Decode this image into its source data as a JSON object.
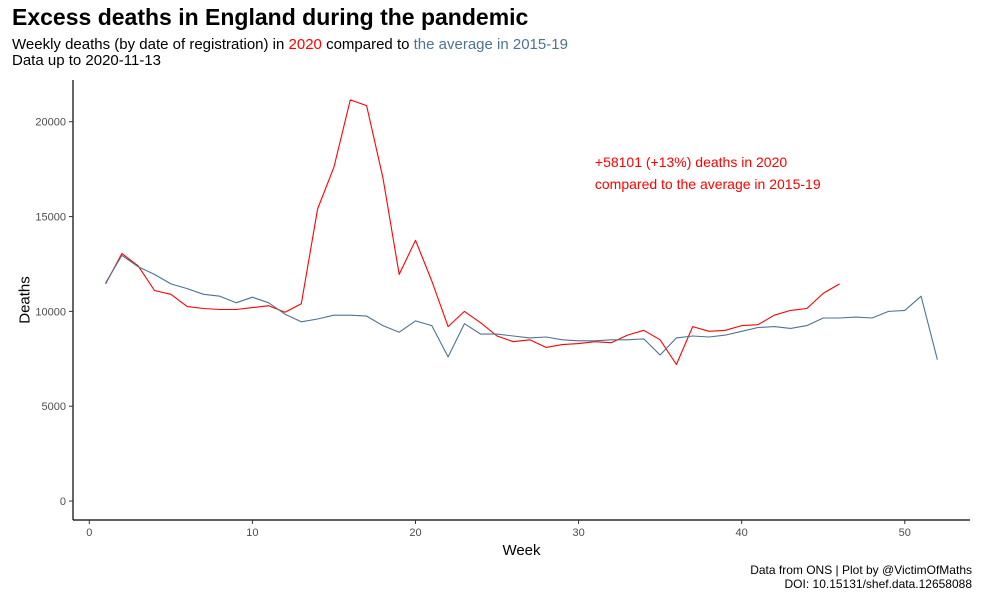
{
  "title": "Excess deaths in England during the pandemic",
  "subtitle": {
    "part1": "Weekly deaths (by date of registration) in ",
    "year": "2020",
    "part2": " compared to ",
    "average": "the average in 2015-19",
    "line2": "Data up to 2020-11-13"
  },
  "caption": {
    "line1": "Data from ONS | Plot by @VictimOfMaths",
    "line2": "DOI: 10.15131/shef.data.12658088"
  },
  "colors": {
    "y2020": "#ff0000",
    "average": "#4d7390",
    "axis": "#000000",
    "tick_label": "#4d4d4d"
  },
  "chart_data": {
    "type": "line",
    "xlabel": "Week",
    "ylabel": "Deaths",
    "xlim": [
      -1,
      54
    ],
    "ylim": [
      -1000,
      22200
    ],
    "x_ticks": [
      0,
      10,
      20,
      30,
      40,
      50
    ],
    "y_ticks": [
      0,
      5000,
      10000,
      15000,
      20000
    ],
    "grid": false,
    "legend": "none",
    "annotation": {
      "line1": "+58101 (+13%) deaths in 2020",
      "line2": "compared to the average in 2015-19",
      "x": 31,
      "y1": 17600,
      "y2": 16450,
      "color": "#ff0000"
    },
    "series": [
      {
        "key": "y2020",
        "color": "#ff0000",
        "x": [
          1,
          2,
          3,
          4,
          5,
          6,
          7,
          8,
          9,
          10,
          11,
          12,
          13,
          14,
          15,
          16,
          17,
          18,
          19,
          20,
          21,
          22,
          23,
          24,
          25,
          26,
          27,
          28,
          29,
          30,
          31,
          32,
          33,
          34,
          35,
          36,
          37,
          38,
          39,
          40,
          41,
          42,
          43,
          44,
          45,
          46
        ],
        "values": [
          11450,
          13050,
          12400,
          11100,
          10900,
          10250,
          10150,
          10100,
          10100,
          10200,
          10300,
          9950,
          10400,
          15400,
          17600,
          21150,
          20850,
          17050,
          11950,
          13750,
          11600,
          9200,
          10000,
          9400,
          8700,
          8400,
          8500,
          8100,
          8250,
          8300,
          8400,
          8350,
          8750,
          9000,
          8500,
          7200,
          9200,
          8950,
          9000,
          9250,
          9300,
          9800,
          10050,
          10150,
          10950,
          11450
        ]
      },
      {
        "key": "average",
        "color": "#4d7390",
        "x": [
          1,
          2,
          3,
          4,
          5,
          6,
          7,
          8,
          9,
          10,
          11,
          12,
          13,
          14,
          15,
          16,
          17,
          18,
          19,
          20,
          21,
          22,
          23,
          24,
          25,
          26,
          27,
          28,
          29,
          30,
          31,
          32,
          33,
          34,
          35,
          36,
          37,
          38,
          39,
          40,
          41,
          42,
          43,
          44,
          45,
          46,
          47,
          48,
          49,
          50,
          51,
          52
        ],
        "values": [
          11500,
          12950,
          12350,
          11950,
          11450,
          11200,
          10900,
          10800,
          10450,
          10750,
          10450,
          9850,
          9450,
          9600,
          9800,
          9800,
          9750,
          9250,
          8900,
          9500,
          9250,
          7600,
          9350,
          8800,
          8800,
          8700,
          8600,
          8650,
          8500,
          8450,
          8450,
          8500,
          8500,
          8550,
          7700,
          8600,
          8700,
          8650,
          8750,
          8950,
          9150,
          9200,
          9100,
          9250,
          9650,
          9650,
          9700,
          9650,
          10000,
          10050,
          10800,
          7450
        ]
      }
    ]
  }
}
